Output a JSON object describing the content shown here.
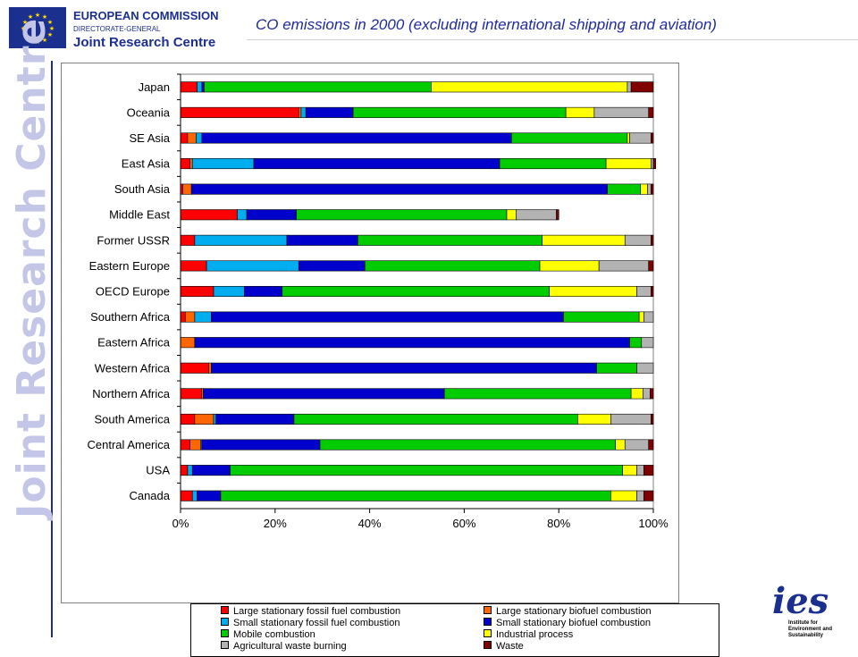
{
  "header": {
    "org_name": "EUROPEAN COMMISSION",
    "directorate": "DIRECTORATE-GENERAL",
    "centre": "Joint Research Centre",
    "title": "CO emissions in 2000 (excluding international shipping and aviation)"
  },
  "sidebar": {
    "watermark": "Joint Research Centre"
  },
  "ies_logo": {
    "letters": "ies",
    "line1": "Institute for",
    "line2": "Environment and",
    "line3": "Sustainability"
  },
  "chart_data": {
    "type": "bar",
    "orientation": "horizontal",
    "stacked": "percent",
    "title": "",
    "xlabel": "",
    "ylabel": "",
    "xlim": [
      0,
      100
    ],
    "x_ticks": [
      "0%",
      "20%",
      "40%",
      "60%",
      "80%",
      "100%"
    ],
    "grid": false,
    "legend_position": "bottom",
    "categories": [
      "Japan",
      "Oceania",
      "SE Asia",
      "East Asia",
      "South Asia",
      "Middle East",
      "Former USSR",
      "Eastern Europe",
      "OECD Europe",
      "Southern Africa",
      "Eastern Africa",
      "Western Africa",
      "Northern Africa",
      "South America",
      "Central America",
      "USA",
      "Canada"
    ],
    "series": [
      {
        "name": "Large stationary fossil fuel combustion",
        "color": "#ff0000",
        "values": [
          3.5,
          25.0,
          1.5,
          2.0,
          0.5,
          12.0,
          3.0,
          5.5,
          7.0,
          1.0,
          0.0,
          6.0,
          4.5,
          3.0,
          2.0,
          1.5,
          2.5
        ]
      },
      {
        "name": "Large stationary biofuel combustion",
        "color": "#ff6600",
        "values": [
          0.0,
          0.5,
          1.8,
          0.5,
          1.8,
          0.0,
          0.0,
          0.0,
          0.0,
          2.0,
          3.0,
          0.5,
          0.3,
          4.0,
          2.3,
          0.0,
          0.0
        ]
      },
      {
        "name": "Small stationary fossil fuel combustion",
        "color": "#00aeef",
        "values": [
          1.0,
          1.0,
          1.2,
          13.0,
          0.0,
          2.0,
          19.5,
          19.5,
          6.5,
          3.5,
          0.0,
          0.0,
          0.0,
          0.5,
          0.2,
          1.0,
          1.0
        ]
      },
      {
        "name": "Small stationary biofuel combustion",
        "color": "#0000cc",
        "values": [
          0.5,
          10.0,
          65.5,
          52.0,
          88.0,
          10.5,
          15.0,
          14.0,
          8.0,
          74.5,
          92.0,
          81.5,
          51.0,
          16.5,
          25.0,
          8.0,
          5.0
        ]
      },
      {
        "name": "Mobile combustion",
        "color": "#00cc00",
        "values": [
          48.0,
          45.0,
          24.5,
          22.5,
          7.0,
          44.5,
          39.0,
          37.0,
          56.5,
          16.0,
          2.5,
          8.5,
          39.5,
          60.0,
          62.5,
          83.0,
          82.5
        ]
      },
      {
        "name": "Industrial process",
        "color": "#ffff00",
        "values": [
          41.5,
          6.0,
          0.5,
          9.5,
          1.5,
          2.0,
          17.5,
          12.5,
          18.5,
          1.0,
          0.0,
          0.0,
          2.5,
          7.0,
          2.0,
          3.0,
          5.5
        ]
      },
      {
        "name": "Agricultural waste burning",
        "color": "#b3b3b3",
        "values": [
          0.8,
          11.5,
          4.5,
          0.5,
          0.7,
          8.5,
          5.5,
          10.5,
          3.0,
          2.0,
          2.5,
          3.5,
          1.5,
          8.5,
          5.0,
          1.5,
          1.5
        ]
      },
      {
        "name": "Waste",
        "color": "#800000",
        "values": [
          4.7,
          1.0,
          0.5,
          0.5,
          0.5,
          0.5,
          0.5,
          1.0,
          0.5,
          0.0,
          0.0,
          0.0,
          0.7,
          0.5,
          1.0,
          2.0,
          2.0
        ]
      }
    ]
  }
}
